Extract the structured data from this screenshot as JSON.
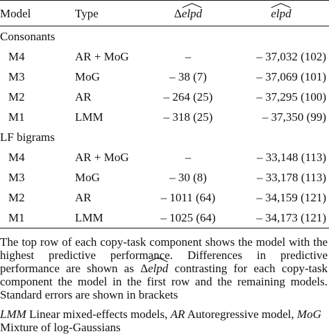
{
  "table": {
    "headers": {
      "model": "Model",
      "type": "Type",
      "delta_prefix": "Δ",
      "delta_var": "elpd",
      "elpd_var": "elpd"
    },
    "sections": [
      {
        "label": "Consonants",
        "rows": [
          {
            "model": "M4",
            "type": "AR + MoG",
            "delta": "–",
            "elpd": "– 37,032 (102)"
          },
          {
            "model": "M3",
            "type": "MoG",
            "delta": "– 38 (7)",
            "elpd": "– 37,069 (101)"
          },
          {
            "model": "M2",
            "type": "AR",
            "delta": "– 264 (25)",
            "elpd": "– 37,295 (100)"
          },
          {
            "model": "M1",
            "type": "LMM",
            "delta": "– 318 (25)",
            "elpd": "– 37,350 (99)"
          }
        ]
      },
      {
        "label": "LF bigrams",
        "rows": [
          {
            "model": "M4",
            "type": "AR + MoG",
            "delta": "–",
            "elpd": "– 33,148 (113)"
          },
          {
            "model": "M3",
            "type": "MoG",
            "delta": "– 30 (8)",
            "elpd": "– 33,178 (113)"
          },
          {
            "model": "M2",
            "type": "AR",
            "delta": "– 1011 (64)",
            "elpd": "– 34,159 (121)"
          },
          {
            "model": "M1",
            "type": "LMM",
            "delta": "– 1025 (64)",
            "elpd": "– 34,173 (121)"
          }
        ]
      }
    ]
  },
  "notes": {
    "note1_part1": "The top row of each copy-task component shows the model with the highest predictive performance. Differences in predictive performance are shown as ",
    "note1_delta_prefix": "Δ",
    "note1_delta_var": "elpd",
    "note1_part2": " contrasting for each copy-task component the model in the first row and the remaining models. Standard errors are shown in brackets",
    "abbr1": "LMM",
    "def1": " Linear mixed-effects models, ",
    "abbr2": "AR",
    "def2": " Autoregressive model, ",
    "abbr3": "MoG",
    "def3": " Mixture of log-Gaussians"
  }
}
